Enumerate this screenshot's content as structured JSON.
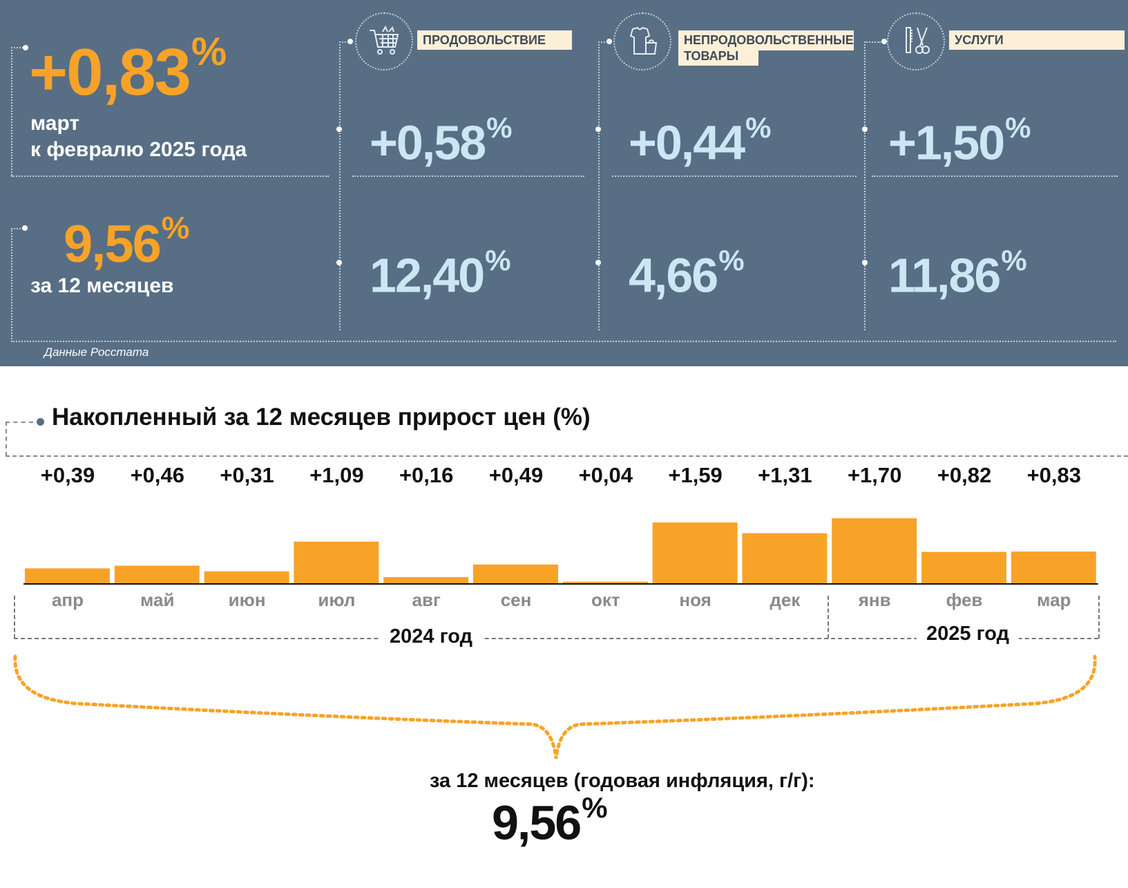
{
  "colors": {
    "panel": "#586e84",
    "accent_orange": "#f8a328",
    "value_blue": "#cce7f3",
    "label_bg": "#fdf0d8"
  },
  "header": {
    "monthly": {
      "value": "+0,83",
      "unit": "%",
      "line1": "март",
      "line2": "к февралю 2025 года"
    },
    "annual": {
      "value": "9,56",
      "unit": "%",
      "label": "за 12 месяцев"
    },
    "categories": [
      {
        "name": "ПРОДОВОЛЬСТВИЕ",
        "icon": "shopping-cart-icon",
        "monthly": "+0,58",
        "annual": "12,40"
      },
      {
        "name_line1": "НЕПРОДОВОЛЬСТВЕННЫЕ",
        "name_line2": "ТОВАРЫ",
        "icon": "clothes-bag-icon",
        "monthly": "+0,44",
        "annual": "4,66"
      },
      {
        "name": "УСЛУГИ",
        "icon": "scissors-comb-icon",
        "monthly": "+1,50",
        "annual": "11,86"
      }
    ],
    "pct": "%",
    "source": "Данные Росстата"
  },
  "chart_data": {
    "type": "bar",
    "title": "Накопленный за 12 месяцев прирост цен (%)",
    "categories": [
      "апр",
      "май",
      "июн",
      "июл",
      "авг",
      "сен",
      "окт",
      "ноя",
      "дек",
      "янв",
      "фев",
      "мар"
    ],
    "values": [
      0.39,
      0.46,
      0.31,
      1.09,
      0.16,
      0.49,
      0.04,
      1.59,
      1.31,
      1.7,
      0.82,
      0.83
    ],
    "value_labels": [
      "+0,39",
      "+0,46",
      "+0,31",
      "+1,09",
      "+0,16",
      "+0,49",
      "+0,04",
      "+1,59",
      "+1,31",
      "+1,70",
      "+0,82",
      "+0,83"
    ],
    "year_groups": [
      "2024 год",
      "2025 год"
    ],
    "bar_color": "#f8a328",
    "ylim": [
      0,
      1.7
    ],
    "summary_label": "за 12 месяцев (годовая инфляция, г/г):",
    "summary_value": "9,56",
    "summary_unit": "%"
  }
}
